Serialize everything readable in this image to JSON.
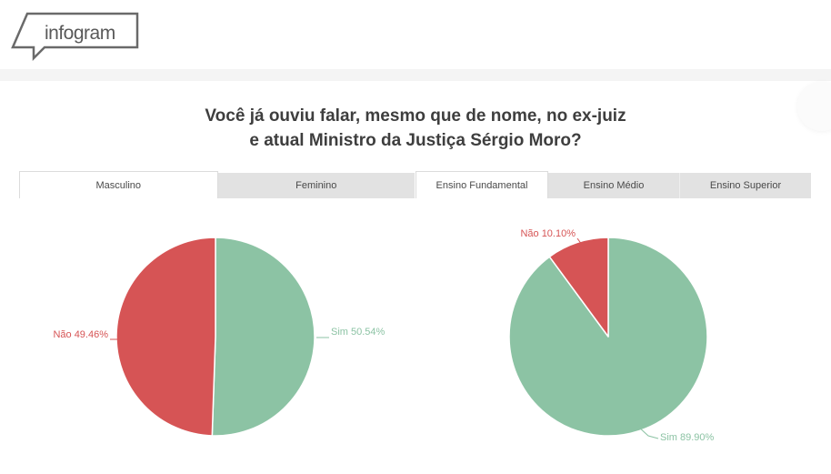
{
  "brand": {
    "logo_text": "infogram"
  },
  "title": {
    "line1": "Você já ouviu falar, mesmo que de nome, no ex-juiz",
    "line2": "e atual Ministro da Justiça Sérgio Moro?"
  },
  "colors": {
    "pie_green": "#8cc3a4",
    "pie_red": "#d65455",
    "title_text": "#3e3e3e",
    "tab_text": "#4a4a4a",
    "logo_gray": "#6a6a6a",
    "divider_bar": "#f4f4f4",
    "inactive_tab_bg": "#e2e2e2"
  },
  "tab_groups": [
    {
      "id": "gender",
      "tabs": [
        {
          "label": "Masculino",
          "active": true
        },
        {
          "label": "Feminino",
          "active": false
        }
      ]
    },
    {
      "id": "education",
      "tabs": [
        {
          "label": "Ensino Fundamental",
          "active": true
        },
        {
          "label": "Ensino Médio",
          "active": false
        },
        {
          "label": "Ensino Superior",
          "active": false
        }
      ]
    }
  ],
  "chart_data": [
    {
      "type": "pie",
      "group_tab": "Masculino",
      "categories": [
        "Sim",
        "Não"
      ],
      "values": [
        50.54,
        49.46
      ],
      "colors": [
        "#8cc3a4",
        "#d65455"
      ],
      "labels": [
        "Sim 50.54%",
        "Não 49.46%"
      ],
      "start_angle": 0,
      "direction": "clockwise",
      "legend_position": "none"
    },
    {
      "type": "pie",
      "group_tab": "Ensino Fundamental",
      "categories": [
        "Sim",
        "Não"
      ],
      "values": [
        89.9,
        10.1
      ],
      "colors": [
        "#8cc3a4",
        "#d65455"
      ],
      "labels": [
        "Sim 89.90%",
        "Não 10.10%"
      ],
      "start_angle": 0,
      "direction": "clockwise",
      "legend_position": "none"
    }
  ]
}
